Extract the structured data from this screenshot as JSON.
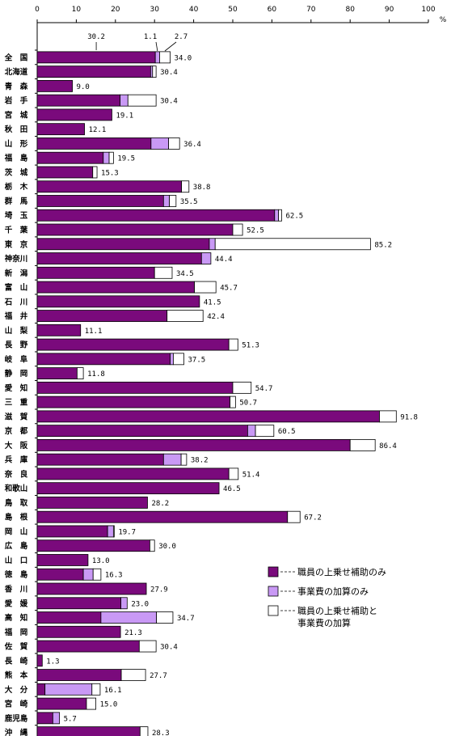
{
  "chart_data": {
    "type": "bar",
    "orientation": "horizontal",
    "stacked": true,
    "unit": "%",
    "xlim": [
      0,
      100
    ],
    "xticks": [
      "0",
      "10",
      "20",
      "30",
      "40",
      "50",
      "60",
      "70",
      "80",
      "90",
      "100"
    ],
    "grid": false,
    "legend_position": "bottom-right",
    "categories": [
      "全　国",
      "北海道",
      "青　森",
      "岩　手",
      "宮　城",
      "秋　田",
      "山　形",
      "福　島",
      "茨　城",
      "栃　木",
      "群　馬",
      "埼　玉",
      "千　葉",
      "東　京",
      "神奈川",
      "新　潟",
      "富　山",
      "石　川",
      "福　井",
      "山　梨",
      "長　野",
      "岐　阜",
      "静　岡",
      "愛　知",
      "三　重",
      "滋　賀",
      "京　都",
      "大　阪",
      "兵　庫",
      "奈　良",
      "和歌山",
      "鳥　取",
      "島　根",
      "岡　山",
      "広　島",
      "山　口",
      "徳　島",
      "香　川",
      "愛　媛",
      "高　知",
      "福　岡",
      "佐　賀",
      "長　崎",
      "熊　本",
      "大　分",
      "宮　崎",
      "鹿児島",
      "沖　縄"
    ],
    "series": [
      {
        "name": "職員の上乗せ補助のみ",
        "color": "#7a0a7c",
        "values": [
          30.2,
          29.0,
          9.0,
          21.2,
          19.1,
          12.1,
          29.1,
          16.9,
          14.2,
          36.9,
          32.3,
          60.7,
          50.0,
          44.0,
          42.0,
          30.0,
          40.2,
          41.5,
          33.2,
          11.1,
          49.0,
          34.0,
          10.2,
          50.0,
          49.3,
          87.5,
          53.8,
          80.0,
          32.3,
          49.0,
          46.5,
          28.2,
          64.0,
          18.0,
          28.8,
          13.0,
          11.8,
          27.9,
          21.4,
          16.3,
          21.3,
          26.1,
          1.3,
          21.5,
          2.0,
          12.6,
          4.0,
          26.3
        ]
      },
      {
        "name": "事業費の加算のみ",
        "color": "#c999f5",
        "values": [
          1.1,
          0.5,
          0,
          2.0,
          0,
          0,
          4.5,
          1.5,
          0,
          0,
          1.5,
          1.0,
          0,
          1.5,
          2.4,
          0,
          0,
          0,
          0,
          0,
          0,
          0.8,
          0,
          0,
          0,
          0,
          2.0,
          0,
          4.5,
          0,
          0,
          0,
          0,
          1.5,
          0,
          0,
          2.5,
          0,
          1.6,
          14.2,
          0,
          0,
          0,
          0,
          12.0,
          0,
          1.7,
          0
        ]
      },
      {
        "name": "職員の上乗せ補助と事業費の加算",
        "color": "#ffffff",
        "values": [
          2.7,
          0.9,
          0,
          7.2,
          0,
          0,
          2.8,
          1.1,
          1.1,
          1.9,
          1.7,
          0.8,
          2.5,
          39.7,
          0,
          4.5,
          5.5,
          0,
          9.2,
          0,
          2.3,
          2.7,
          1.6,
          4.7,
          1.4,
          4.3,
          4.7,
          6.4,
          1.4,
          2.4,
          0,
          0,
          3.2,
          0.2,
          1.2,
          0,
          2.0,
          0,
          0,
          4.2,
          0,
          4.3,
          0,
          6.2,
          2.1,
          2.4,
          0,
          2.0
        ]
      }
    ],
    "totals": [
      "34.0",
      "30.4",
      "9.0",
      "30.4",
      "19.1",
      "12.1",
      "36.4",
      "19.5",
      "15.3",
      "38.8",
      "35.5",
      "62.5",
      "52.5",
      "85.2",
      "44.4",
      "34.5",
      "45.7",
      "41.5",
      "42.4",
      "11.1",
      "51.3",
      "37.5",
      "11.8",
      "54.7",
      "50.7",
      "91.8",
      "60.5",
      "86.4",
      "38.2",
      "51.4",
      "46.5",
      "28.2",
      "67.2",
      "19.7",
      "30.0",
      "13.0",
      "16.3",
      "27.9",
      "23.0",
      "34.7",
      "21.3",
      "30.4",
      "1.3",
      "27.7",
      "16.1",
      "15.0",
      "5.7",
      "28.3"
    ],
    "annotations": [
      "30.2",
      "1.1",
      "2.7"
    ]
  }
}
